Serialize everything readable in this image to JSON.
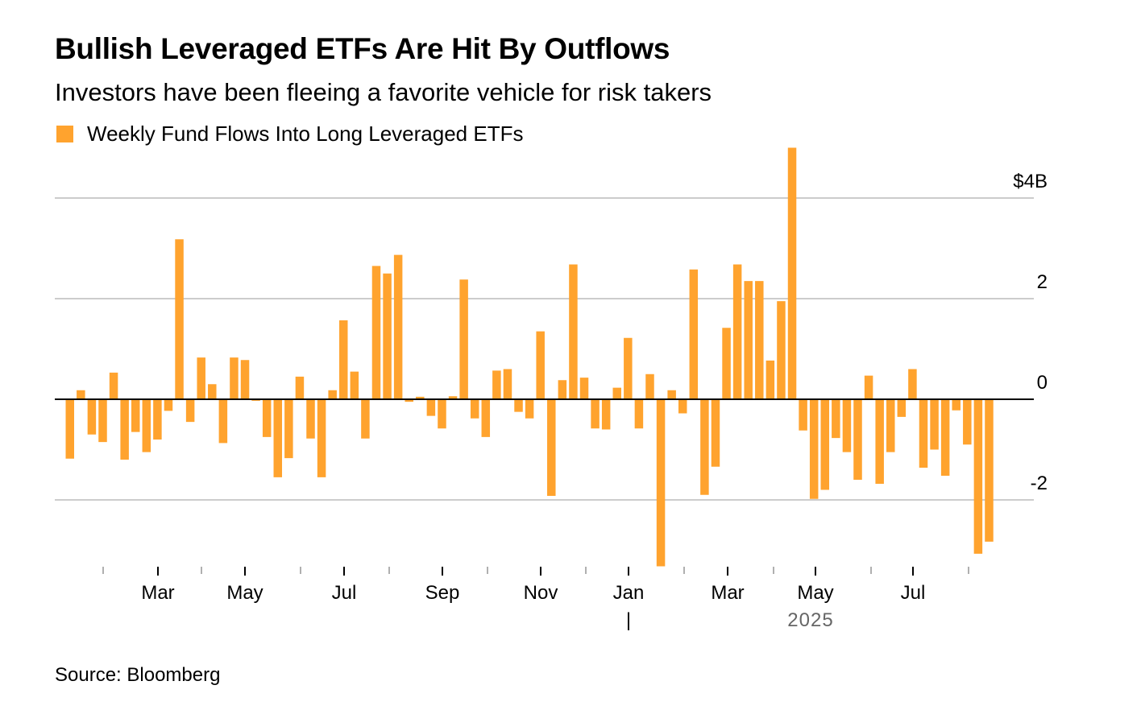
{
  "title": "Bullish Leveraged ETFs Are Hit By Outflows",
  "subtitle": "Investors have been fleeing a favorite vehicle for risk takers",
  "source": "Source: Bloomberg",
  "colors": {
    "bar": "#ffa32e",
    "grid": "#cccccc",
    "zero": "#000000",
    "year": "#666666"
  },
  "chart_data": {
    "type": "bar",
    "title": "Bullish Leveraged ETFs Are Hit By Outflows",
    "subtitle": "Investors have been fleeing a favorite vehicle for risk takers",
    "xlabel": "",
    "ylabel": "",
    "unit": "$B",
    "ylim": [
      -3.35,
      5.0
    ],
    "grid": true,
    "legend_position": "top-left",
    "y_ticks": [
      {
        "value": 4,
        "label": "$4B"
      },
      {
        "value": 2,
        "label": "2"
      },
      {
        "value": 0,
        "label": "0"
      },
      {
        "value": -2,
        "label": "-2"
      }
    ],
    "x_tick_labels": [
      "Mar",
      "May",
      "Jul",
      "Sep",
      "Nov",
      "Jan",
      "Mar",
      "May",
      "Jul"
    ],
    "year_label": "2025",
    "year_marker": "|",
    "series": [
      {
        "name": "Weekly Fund Flows Into Long Leveraged ETFs",
        "values": [
          -1.18,
          0.18,
          -0.7,
          -0.85,
          0.53,
          -1.2,
          -0.65,
          -1.05,
          -0.8,
          -0.23,
          3.18,
          -0.45,
          0.83,
          0.3,
          -0.87,
          0.83,
          0.78,
          -0.03,
          -0.75,
          -1.55,
          -1.17,
          0.45,
          -0.78,
          -1.55,
          0.18,
          1.57,
          0.55,
          -0.78,
          2.65,
          2.5,
          2.87,
          -0.05,
          0.05,
          -0.33,
          -0.58,
          0.06,
          2.38,
          -0.38,
          -0.75,
          0.57,
          0.6,
          -0.25,
          -0.38,
          1.35,
          -1.92,
          0.38,
          2.68,
          0.43,
          -0.58,
          -0.6,
          0.23,
          1.22,
          -0.58,
          0.5,
          -3.32,
          0.18,
          -0.28,
          2.58,
          -1.9,
          -1.34,
          1.42,
          2.68,
          2.35,
          2.35,
          0.77,
          1.95,
          5.0,
          -0.62,
          -1.98,
          -1.8,
          -0.77,
          -1.05,
          -1.6,
          0.47,
          -1.68,
          -1.05,
          -0.35,
          0.6,
          -1.36,
          -1.0,
          -1.52,
          -0.22,
          -0.9,
          -3.07,
          -2.83
        ]
      }
    ]
  }
}
